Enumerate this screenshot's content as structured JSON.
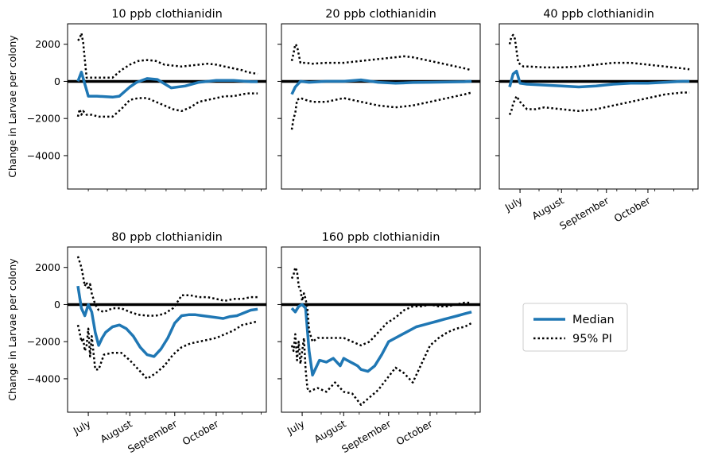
{
  "figure": {
    "ylabel": "Change in Larvae per colony",
    "legend": [
      {
        "label": "Median",
        "color": "#1f77b4",
        "style": "solid"
      },
      {
        "label": "95% PI",
        "color": "#000000",
        "style": "dotted"
      }
    ]
  },
  "chart_data": [
    {
      "type": "line",
      "title": "10 ppb clothianidin",
      "ylim": [
        -5800,
        3100
      ],
      "yticks": [
        2000,
        0,
        -2000,
        -4000
      ],
      "xlim": [
        -6,
        109
      ],
      "xtick_labels": [],
      "grid": false,
      "legend_position": "right of lower-right panel",
      "zero_line": true,
      "series": [
        {
          "name": "Median",
          "x": [
            0,
            2,
            6,
            11,
            20,
            24,
            30,
            34,
            40,
            46,
            54,
            62,
            70,
            80,
            90,
            100,
            104
          ],
          "values": [
            0,
            500,
            -800,
            -800,
            -850,
            -800,
            -300,
            -50,
            150,
            100,
            -350,
            -250,
            -50,
            50,
            50,
            -20,
            -20
          ]
        },
        {
          "name": "95% PI upper",
          "x": [
            0,
            1,
            2,
            3,
            5,
            7,
            12,
            20,
            25,
            30,
            35,
            40,
            45,
            50,
            55,
            60,
            65,
            70,
            75,
            80,
            85,
            90,
            95,
            98,
            104
          ],
          "values": [
            2200,
            2300,
            2600,
            2100,
            200,
            200,
            200,
            200,
            600,
            900,
            1100,
            1150,
            1100,
            900,
            850,
            800,
            850,
            900,
            950,
            900,
            800,
            700,
            600,
            500,
            400
          ]
        },
        {
          "name": "95% PI lower",
          "x": [
            0,
            1,
            2,
            3,
            5,
            8,
            12,
            20,
            25,
            30,
            35,
            40,
            45,
            50,
            55,
            60,
            65,
            70,
            75,
            80,
            85,
            90,
            95,
            98,
            104
          ],
          "values": [
            -1900,
            -1500,
            -1800,
            -1600,
            -1800,
            -1800,
            -1900,
            -1900,
            -1500,
            -1000,
            -900,
            -900,
            -1100,
            -1300,
            -1500,
            -1600,
            -1400,
            -1100,
            -1000,
            -900,
            -800,
            -800,
            -700,
            -650,
            -650
          ]
        }
      ]
    },
    {
      "type": "line",
      "title": "20 ppb clothianidin",
      "ylim": [
        -5800,
        3100
      ],
      "yticks": [
        2000,
        0,
        -2000,
        -4000
      ],
      "xlim": [
        -6,
        109
      ],
      "xtick_labels": [],
      "zero_line": true,
      "series": [
        {
          "name": "Median",
          "x": [
            0,
            2,
            5,
            10,
            20,
            30,
            40,
            50,
            60,
            70,
            80,
            90,
            100,
            104
          ],
          "values": [
            -700,
            -300,
            0,
            -50,
            0,
            0,
            80,
            -50,
            -100,
            -60,
            -50,
            -30,
            -20,
            0
          ]
        },
        {
          "name": "95% PI upper",
          "x": [
            0,
            1,
            2,
            3,
            5,
            8,
            12,
            20,
            30,
            40,
            50,
            60,
            65,
            70,
            80,
            90,
            100,
            104
          ],
          "values": [
            1100,
            1500,
            2000,
            1900,
            1000,
            1000,
            950,
            1000,
            1000,
            1100,
            1200,
            1300,
            1350,
            1300,
            1100,
            900,
            700,
            600
          ]
        },
        {
          "name": "95% PI lower",
          "x": [
            0,
            1,
            2,
            3,
            5,
            8,
            12,
            20,
            30,
            40,
            50,
            60,
            70,
            80,
            90,
            100,
            104
          ],
          "values": [
            -2600,
            -2000,
            -1700,
            -1000,
            -900,
            -1000,
            -1100,
            -1100,
            -900,
            -1100,
            -1300,
            -1400,
            -1300,
            -1100,
            -900,
            -700,
            -600
          ]
        }
      ]
    },
    {
      "type": "line",
      "title": "40 ppb clothianidin",
      "ylim": [
        -5800,
        3100
      ],
      "yticks": [
        2000,
        0,
        -2000,
        -4000
      ],
      "xlim": [
        -6,
        109
      ],
      "xtick_labels": [
        "July",
        "August",
        "September",
        "October"
      ],
      "zero_line": true,
      "series": [
        {
          "name": "Median",
          "x": [
            0,
            2,
            4,
            6,
            10,
            20,
            30,
            40,
            50,
            60,
            70,
            80,
            90,
            100,
            104
          ],
          "values": [
            -300,
            400,
            550,
            -100,
            -150,
            -200,
            -250,
            -300,
            -250,
            -150,
            -100,
            -100,
            -50,
            0,
            0
          ]
        },
        {
          "name": "95% PI upper",
          "x": [
            0,
            1,
            2,
            3,
            5,
            8,
            12,
            20,
            30,
            40,
            50,
            60,
            70,
            80,
            90,
            100,
            104
          ],
          "values": [
            2000,
            2400,
            2500,
            2300,
            1000,
            800,
            800,
            750,
            750,
            800,
            900,
            1000,
            1000,
            900,
            800,
            700,
            650
          ]
        },
        {
          "name": "95% PI lower",
          "x": [
            0,
            1,
            2,
            4,
            6,
            10,
            15,
            20,
            30,
            40,
            50,
            60,
            70,
            80,
            90,
            100,
            104
          ],
          "values": [
            -1800,
            -1600,
            -1200,
            -800,
            -1100,
            -1500,
            -1500,
            -1400,
            -1500,
            -1600,
            -1500,
            -1300,
            -1100,
            -900,
            -700,
            -600,
            -600
          ]
        }
      ]
    },
    {
      "type": "line",
      "title": "80 ppb clothianidin",
      "ylim": [
        -5800,
        3100
      ],
      "yticks": [
        2000,
        0,
        -2000,
        -4000
      ],
      "xlim": [
        -6,
        109
      ],
      "xtick_labels": [
        "July",
        "August",
        "September",
        "October"
      ],
      "zero_line": true,
      "series": [
        {
          "name": "Median",
          "x": [
            0,
            2,
            4,
            6,
            8,
            10,
            12,
            14,
            16,
            20,
            24,
            28,
            32,
            36,
            40,
            44,
            48,
            52,
            56,
            60,
            64,
            68,
            72,
            76,
            80,
            84,
            88,
            92,
            96,
            100,
            104
          ],
          "values": [
            1000,
            -200,
            -600,
            0,
            -400,
            -1500,
            -2200,
            -1800,
            -1500,
            -1200,
            -1100,
            -1300,
            -1700,
            -2300,
            -2700,
            -2800,
            -2400,
            -1800,
            -1000,
            -600,
            -550,
            -550,
            -600,
            -650,
            -700,
            -750,
            -650,
            -600,
            -450,
            -300,
            -250
          ]
        },
        {
          "name": "95% PI upper",
          "x": [
            0,
            1,
            2,
            3,
            4,
            5,
            6,
            7,
            8,
            9,
            10,
            12,
            15,
            20,
            25,
            30,
            35,
            40,
            45,
            50,
            55,
            58,
            60,
            65,
            70,
            75,
            80,
            85,
            90,
            95,
            100,
            104
          ],
          "values": [
            2600,
            2300,
            2000,
            1500,
            1000,
            1200,
            800,
            1100,
            600,
            300,
            0,
            -300,
            -400,
            -200,
            -200,
            -400,
            -550,
            -600,
            -600,
            -500,
            -200,
            200,
            500,
            500,
            400,
            400,
            300,
            200,
            300,
            300,
            400,
            400
          ]
        },
        {
          "name": "95% PI lower",
          "x": [
            0,
            1,
            2,
            3,
            4,
            5,
            6,
            7,
            8,
            9,
            10,
            12,
            15,
            20,
            25,
            30,
            35,
            40,
            45,
            50,
            55,
            60,
            65,
            70,
            75,
            80,
            85,
            90,
            95,
            100,
            104
          ],
          "values": [
            -1100,
            -1500,
            -2000,
            -1800,
            -2500,
            -2200,
            -1300,
            -2800,
            -1700,
            -2600,
            -3500,
            -3500,
            -2700,
            -2600,
            -2600,
            -3000,
            -3500,
            -4000,
            -3700,
            -3300,
            -2700,
            -2300,
            -2100,
            -2000,
            -1900,
            -1800,
            -1600,
            -1400,
            -1100,
            -1000,
            -900
          ]
        }
      ]
    },
    {
      "type": "line",
      "title": "160 ppb clothianidin",
      "ylim": [
        -5800,
        3100
      ],
      "yticks": [
        2000,
        0,
        -2000,
        -4000
      ],
      "xlim": [
        -6,
        109
      ],
      "xtick_labels": [
        "July",
        "August",
        "September",
        "October"
      ],
      "zero_line": true,
      "series": [
        {
          "name": "Median",
          "x": [
            0,
            2,
            4,
            6,
            8,
            10,
            12,
            16,
            20,
            24,
            28,
            30,
            32,
            34,
            36,
            38,
            40,
            44,
            48,
            52,
            56,
            60,
            64,
            68,
            72,
            76,
            80,
            84,
            88,
            92,
            96,
            100,
            104
          ],
          "values": [
            -200,
            -400,
            -100,
            0,
            -200,
            -2500,
            -3800,
            -3000,
            -3100,
            -2900,
            -3300,
            -2900,
            -3000,
            -3100,
            -3200,
            -3300,
            -3500,
            -3600,
            -3300,
            -2700,
            -2000,
            -1800,
            -1600,
            -1400,
            -1200,
            -1100,
            -1000,
            -900,
            -800,
            -700,
            -600,
            -500,
            -400
          ]
        },
        {
          "name": "95% PI upper",
          "x": [
            0,
            1,
            2,
            3,
            4,
            5,
            6,
            7,
            8,
            9,
            10,
            12,
            15,
            20,
            25,
            30,
            35,
            40,
            45,
            50,
            55,
            60,
            65,
            70,
            75,
            80,
            85,
            90,
            95,
            100,
            104
          ],
          "values": [
            1400,
            1600,
            2000,
            1800,
            1000,
            800,
            200,
            600,
            300,
            -200,
            -1400,
            -2000,
            -1800,
            -1800,
            -1800,
            -1800,
            -2000,
            -2200,
            -2000,
            -1500,
            -1000,
            -700,
            -300,
            -100,
            -100,
            0,
            -100,
            -100,
            0,
            100,
            100
          ]
        },
        {
          "name": "95% PI lower",
          "x": [
            0,
            1,
            2,
            3,
            4,
            5,
            6,
            7,
            8,
            9,
            10,
            12,
            15,
            20,
            25,
            30,
            35,
            40,
            45,
            50,
            55,
            60,
            65,
            70,
            75,
            80,
            85,
            90,
            95,
            100,
            104
          ],
          "values": [
            -2200,
            -2500,
            -1600,
            -3000,
            -2000,
            -3200,
            -2500,
            -1800,
            -3500,
            -4500,
            -4700,
            -4600,
            -4500,
            -4700,
            -4200,
            -4700,
            -4800,
            -5400,
            -5000,
            -4600,
            -4000,
            -3400,
            -3700,
            -4200,
            -3200,
            -2200,
            -1800,
            -1500,
            -1300,
            -1200,
            -1000
          ]
        }
      ]
    }
  ]
}
